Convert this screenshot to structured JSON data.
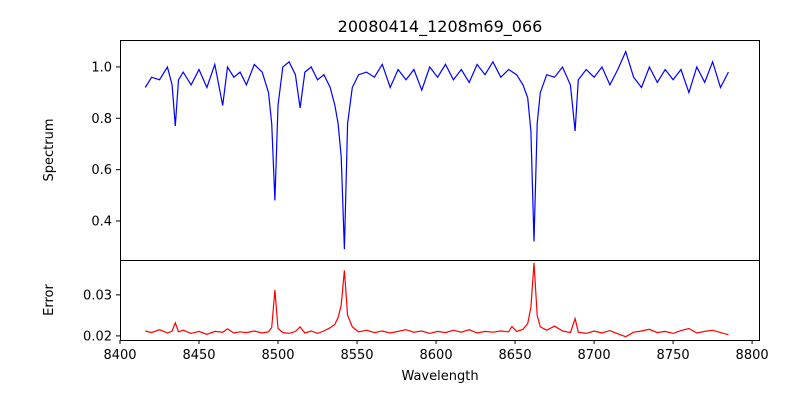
{
  "chart_data": [
    {
      "type": "line",
      "title": "20080414_1208m69_066",
      "xlabel": "",
      "ylabel": "Spectrum",
      "xlim": [
        8400,
        8805
      ],
      "ylim": [
        0.248,
        1.105
      ],
      "yticks": [
        0.4,
        0.6,
        0.8,
        1.0
      ],
      "ytick_labels": [
        "0.4",
        "0.6",
        "0.8",
        "1.0"
      ],
      "series": [
        {
          "name": "spectrum",
          "color": "#0000ff",
          "points": [
            [
              8416,
              0.92
            ],
            [
              8420,
              0.96
            ],
            [
              8425,
              0.95
            ],
            [
              8430,
              1.0
            ],
            [
              8433,
              0.93
            ],
            [
              8435,
              0.77
            ],
            [
              8437,
              0.95
            ],
            [
              8440,
              0.98
            ],
            [
              8445,
              0.93
            ],
            [
              8450,
              0.99
            ],
            [
              8455,
              0.92
            ],
            [
              8460,
              1.01
            ],
            [
              8465,
              0.85
            ],
            [
              8468,
              1.0
            ],
            [
              8472,
              0.96
            ],
            [
              8476,
              0.98
            ],
            [
              8480,
              0.93
            ],
            [
              8485,
              1.01
            ],
            [
              8490,
              0.98
            ],
            [
              8494,
              0.9
            ],
            [
              8496,
              0.78
            ],
            [
              8498,
              0.48
            ],
            [
              8500,
              0.85
            ],
            [
              8503,
              1.0
            ],
            [
              8507,
              1.02
            ],
            [
              8511,
              0.97
            ],
            [
              8514,
              0.84
            ],
            [
              8517,
              0.98
            ],
            [
              8521,
              1.0
            ],
            [
              8525,
              0.95
            ],
            [
              8529,
              0.97
            ],
            [
              8533,
              0.92
            ],
            [
              8536,
              0.85
            ],
            [
              8538,
              0.78
            ],
            [
              8540,
              0.65
            ],
            [
              8542,
              0.29
            ],
            [
              8544,
              0.78
            ],
            [
              8547,
              0.92
            ],
            [
              8551,
              0.97
            ],
            [
              8556,
              0.98
            ],
            [
              8561,
              0.96
            ],
            [
              8566,
              1.01
            ],
            [
              8571,
              0.92
            ],
            [
              8576,
              0.99
            ],
            [
              8581,
              0.95
            ],
            [
              8586,
              0.99
            ],
            [
              8591,
              0.91
            ],
            [
              8596,
              1.0
            ],
            [
              8601,
              0.96
            ],
            [
              8606,
              1.01
            ],
            [
              8611,
              0.95
            ],
            [
              8616,
              0.99
            ],
            [
              8621,
              0.94
            ],
            [
              8626,
              1.01
            ],
            [
              8631,
              0.97
            ],
            [
              8636,
              1.02
            ],
            [
              8641,
              0.96
            ],
            [
              8646,
              0.99
            ],
            [
              8651,
              0.97
            ],
            [
              8655,
              0.93
            ],
            [
              8658,
              0.88
            ],
            [
              8660,
              0.75
            ],
            [
              8662,
              0.32
            ],
            [
              8664,
              0.78
            ],
            [
              8666,
              0.9
            ],
            [
              8670,
              0.97
            ],
            [
              8675,
              0.96
            ],
            [
              8680,
              1.0
            ],
            [
              8685,
              0.93
            ],
            [
              8688,
              0.75
            ],
            [
              8690,
              0.95
            ],
            [
              8695,
              0.99
            ],
            [
              8700,
              0.96
            ],
            [
              8705,
              1.0
            ],
            [
              8710,
              0.93
            ],
            [
              8715,
              0.99
            ],
            [
              8720,
              1.06
            ],
            [
              8725,
              0.96
            ],
            [
              8730,
              0.92
            ],
            [
              8735,
              1.0
            ],
            [
              8740,
              0.94
            ],
            [
              8745,
              0.99
            ],
            [
              8750,
              0.95
            ],
            [
              8755,
              0.99
            ],
            [
              8760,
              0.9
            ],
            [
              8765,
              1.0
            ],
            [
              8770,
              0.94
            ],
            [
              8775,
              1.02
            ],
            [
              8780,
              0.92
            ],
            [
              8785,
              0.98
            ]
          ]
        }
      ]
    },
    {
      "type": "line",
      "title": "",
      "xlabel": "Wavelength",
      "ylabel": "Error",
      "xlim": [
        8400,
        8805
      ],
      "ylim": [
        0.019,
        0.0385
      ],
      "xticks": [
        8400,
        8450,
        8500,
        8550,
        8600,
        8650,
        8700,
        8750,
        8800
      ],
      "xtick_labels": [
        "8400",
        "8450",
        "8500",
        "8550",
        "8600",
        "8650",
        "8700",
        "8750",
        "8800"
      ],
      "yticks": [
        0.02,
        0.03
      ],
      "ytick_labels": [
        "0.02",
        "0.03"
      ],
      "series": [
        {
          "name": "error",
          "color": "#ff0000",
          "points": [
            [
              8416,
              0.0212
            ],
            [
              8420,
              0.0208
            ],
            [
              8425,
              0.0215
            ],
            [
              8430,
              0.0207
            ],
            [
              8433,
              0.0212
            ],
            [
              8435,
              0.0232
            ],
            [
              8437,
              0.021
            ],
            [
              8440,
              0.0214
            ],
            [
              8445,
              0.0206
            ],
            [
              8450,
              0.0211
            ],
            [
              8455,
              0.0204
            ],
            [
              8460,
              0.0211
            ],
            [
              8465,
              0.0209
            ],
            [
              8468,
              0.0217
            ],
            [
              8472,
              0.0207
            ],
            [
              8476,
              0.021
            ],
            [
              8480,
              0.0208
            ],
            [
              8485,
              0.0212
            ],
            [
              8490,
              0.0207
            ],
            [
              8494,
              0.021
            ],
            [
              8496,
              0.022
            ],
            [
              8498,
              0.0312
            ],
            [
              8500,
              0.0218
            ],
            [
              8503,
              0.0208
            ],
            [
              8507,
              0.0206
            ],
            [
              8511,
              0.0211
            ],
            [
              8514,
              0.0222
            ],
            [
              8517,
              0.0207
            ],
            [
              8521,
              0.0212
            ],
            [
              8525,
              0.0206
            ],
            [
              8529,
              0.0212
            ],
            [
              8533,
              0.022
            ],
            [
              8536,
              0.0228
            ],
            [
              8538,
              0.0245
            ],
            [
              8540,
              0.0275
            ],
            [
              8542,
              0.036
            ],
            [
              8544,
              0.025
            ],
            [
              8547,
              0.0222
            ],
            [
              8551,
              0.021
            ],
            [
              8556,
              0.0214
            ],
            [
              8561,
              0.0208
            ],
            [
              8566,
              0.0212
            ],
            [
              8571,
              0.0207
            ],
            [
              8576,
              0.0211
            ],
            [
              8581,
              0.0215
            ],
            [
              8586,
              0.0209
            ],
            [
              8591,
              0.0212
            ],
            [
              8596,
              0.0206
            ],
            [
              8601,
              0.0211
            ],
            [
              8606,
              0.0208
            ],
            [
              8611,
              0.0214
            ],
            [
              8616,
              0.0209
            ],
            [
              8621,
              0.0215
            ],
            [
              8626,
              0.0207
            ],
            [
              8631,
              0.0211
            ],
            [
              8636,
              0.0209
            ],
            [
              8641,
              0.0212
            ],
            [
              8646,
              0.021
            ],
            [
              8648,
              0.0223
            ],
            [
              8651,
              0.0211
            ],
            [
              8655,
              0.0216
            ],
            [
              8658,
              0.023
            ],
            [
              8660,
              0.027
            ],
            [
              8662,
              0.0378
            ],
            [
              8664,
              0.025
            ],
            [
              8666,
              0.0222
            ],
            [
              8670,
              0.0214
            ],
            [
              8675,
              0.0224
            ],
            [
              8680,
              0.0212
            ],
            [
              8685,
              0.0208
            ],
            [
              8688,
              0.0242
            ],
            [
              8690,
              0.0209
            ],
            [
              8695,
              0.0206
            ],
            [
              8700,
              0.0212
            ],
            [
              8705,
              0.0207
            ],
            [
              8710,
              0.0213
            ],
            [
              8715,
              0.0205
            ],
            [
              8720,
              0.0198
            ],
            [
              8725,
              0.0209
            ],
            [
              8730,
              0.0212
            ],
            [
              8735,
              0.0216
            ],
            [
              8740,
              0.0208
            ],
            [
              8745,
              0.0211
            ],
            [
              8750,
              0.0206
            ],
            [
              8755,
              0.0213
            ],
            [
              8760,
              0.0218
            ],
            [
              8765,
              0.0207
            ],
            [
              8770,
              0.0211
            ],
            [
              8775,
              0.0214
            ],
            [
              8780,
              0.0208
            ],
            [
              8785,
              0.0203
            ]
          ]
        }
      ]
    }
  ]
}
